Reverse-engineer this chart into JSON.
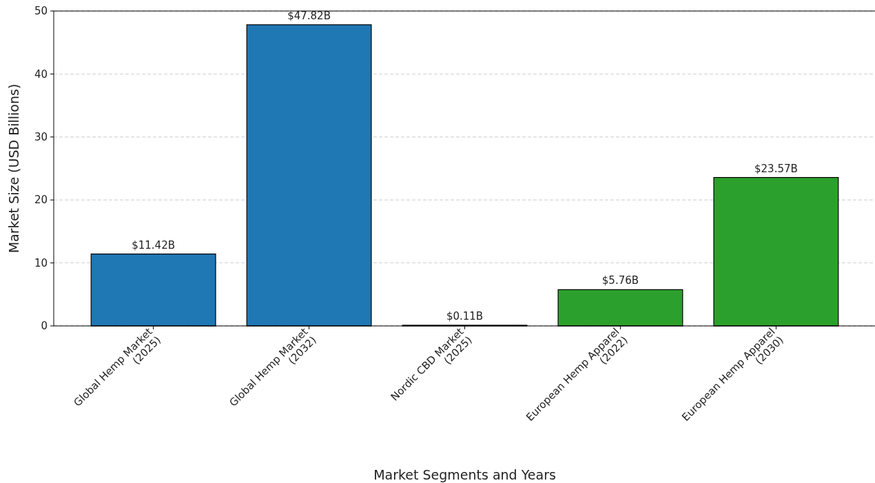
{
  "chart_data": {
    "type": "bar",
    "xlabel": "Market Segments and Years",
    "ylabel": "Market Size (USD Billions)",
    "categories": [
      "Global Hemp Market\n(2025)",
      "Global Hemp Market\n(2032)",
      "Nordic CBD Market\n(2025)",
      "European Hemp Apparel\n(2022)",
      "European Hemp Apparel\n(2030)"
    ],
    "values": [
      11.42,
      47.82,
      0.11,
      5.76,
      23.57
    ],
    "colors": [
      "#1f77b4",
      "#1f77b4",
      "#1f77b4",
      "#2ca02c",
      "#2ca02c"
    ],
    "value_labels": [
      "$11.42B",
      "$47.82B",
      "$0.11B",
      "$5.76B",
      "$23.57B"
    ],
    "ylim": [
      0,
      50
    ],
    "yticks": [
      0,
      10,
      20,
      30,
      40,
      50
    ],
    "grid": "y"
  }
}
